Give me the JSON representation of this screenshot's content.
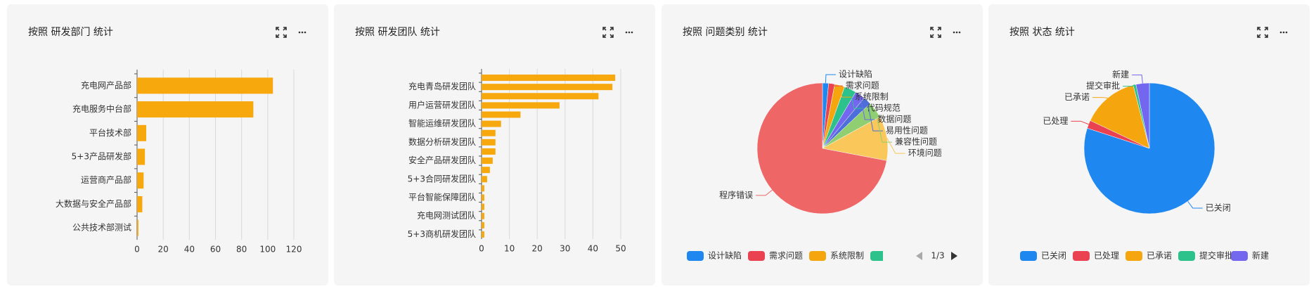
{
  "chart_data": [
    {
      "type": "bar",
      "title": "按照 研发部门 统计",
      "categories": [
        "充电网产品部",
        "充电服务中台部",
        "平台技术部",
        "5+3产品研发部",
        "运营商产品部",
        "大数据与安全产品部",
        "公共技术部测试"
      ],
      "values": [
        104,
        89,
        7,
        6,
        5,
        4,
        1
      ],
      "color": "#f7a80d",
      "xlim": [
        0,
        120
      ],
      "xticks": [
        0,
        20,
        40,
        60,
        80,
        100,
        120
      ],
      "grid": true
    },
    {
      "type": "bar",
      "title": "按照 研发团队 统计",
      "categories": [
        null,
        "充电青岛研发团队",
        null,
        "用户运营研发团队",
        null,
        "智能运维研发团队",
        null,
        "数据分析研发团队",
        null,
        "安全产品研发团队",
        null,
        "5+3合同研发团队",
        null,
        "平台智能保障团队",
        null,
        "充电网测试团队",
        null,
        "5+3商机研发团队"
      ],
      "values": [
        48,
        47,
        42,
        28,
        14,
        7,
        5,
        5,
        5,
        4,
        3,
        2,
        1,
        1,
        1,
        1,
        1,
        1
      ],
      "color": "#f7a80d",
      "xlim": [
        0,
        50
      ],
      "xticks": [
        0,
        10,
        20,
        30,
        40,
        50
      ],
      "grid": true
    },
    {
      "type": "pie",
      "title": "按照 问题类别 统计",
      "categories": [
        "设计缺陷",
        "需求问题",
        "系统限制",
        "代码规范",
        "数据问题",
        "易用性问题",
        "兼容性问题",
        "环境问题",
        "程序错误"
      ],
      "values": [
        1.5,
        1.5,
        2.5,
        3,
        2.5,
        2,
        4,
        11,
        72
      ],
      "colors": [
        "#1e88f0",
        "#ea4250",
        "#f5a60f",
        "#2dc28c",
        "#7367f0",
        "#4d6fd9",
        "#8fcf72",
        "#f9c75a",
        "#ee6666"
      ],
      "legend_page": "1/3"
    },
    {
      "type": "pie",
      "title": "按照 状态 统计",
      "categories": [
        "已关闭",
        "已处理",
        "已承诺",
        "提交审批",
        "新建"
      ],
      "values": [
        80,
        2,
        14,
        0.7,
        3.3
      ],
      "colors": [
        "#1e88f0",
        "#ea4250",
        "#f5a60f",
        "#2dc28c",
        "#7367f0"
      ]
    }
  ]
}
